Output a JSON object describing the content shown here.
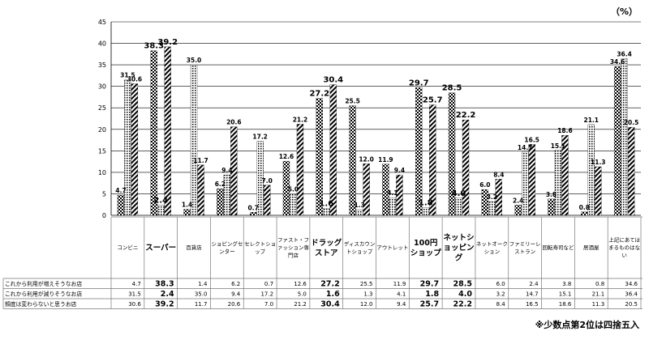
{
  "unit_label": "（%）",
  "footnote": "※少数点第2位は四捨五入",
  "chart_data": {
    "type": "bar",
    "categories": [
      "コンビニ",
      "スーパー",
      "百貨店",
      "ショピングセンター",
      "セレクトショップ",
      "ファスト・ファッション専門店",
      "ドラッグストア",
      "ディスカウントショップ",
      "アウトレット",
      "100円ショップ",
      "ネットショッピング",
      "ネットオークション",
      "ファミリーレストラン",
      "回転寿司など",
      "居酒屋",
      "上記にあてはまるものはない"
    ],
    "bold_categories": [
      1,
      6,
      9,
      10
    ],
    "series": [
      {
        "name": "これから利用が増えそうなお店",
        "values": [
          4.7,
          38.3,
          1.4,
          6.2,
          0.7,
          12.6,
          27.2,
          25.5,
          11.9,
          29.7,
          28.5,
          6.0,
          2.4,
          3.8,
          0.8,
          34.6
        ],
        "pattern": "checker"
      },
      {
        "name": "これから利用が減りそうなお店",
        "values": [
          31.5,
          2.4,
          35.0,
          9.4,
          17.2,
          5.0,
          1.6,
          1.3,
          4.1,
          1.8,
          4.0,
          3.2,
          14.7,
          15.1,
          21.1,
          36.4
        ],
        "pattern": "dots"
      },
      {
        "name": "頻度は変わらないと思うお店",
        "values": [
          30.6,
          39.2,
          11.7,
          20.6,
          7.0,
          21.2,
          30.4,
          12.0,
          9.4,
          25.7,
          22.2,
          8.4,
          16.5,
          18.6,
          11.3,
          20.5
        ],
        "pattern": "diagonal"
      }
    ],
    "table_values": [
      [
        "4.7",
        "38.3",
        "1.4",
        "6.2",
        "0.7",
        "12.6",
        "27.2",
        "25.5",
        "11.9",
        "29.7",
        "28.5",
        "6.0",
        "2.4",
        "3.8",
        "0.8",
        "34.6"
      ],
      [
        "31.5",
        "2.4",
        "35.0",
        "9.4",
        "17.2",
        "5.0",
        "1.6",
        "1.3",
        "4.1",
        "1.8",
        "4.0",
        "3.2",
        "14.7",
        "15.1",
        "21.1",
        "36.4"
      ],
      [
        "30.6",
        "39.2",
        "11.7",
        "20.6",
        "7.0",
        "21.2",
        "30.4",
        "12.0",
        "9.4",
        "25.7",
        "22.2",
        "8.4",
        "16.5",
        "18.6",
        "11.3",
        "20.5"
      ]
    ],
    "y_ticks": [
      "0",
      "5",
      "10",
      "15",
      "20",
      "25",
      "30",
      "35",
      "40",
      "45"
    ],
    "ylim": [
      0,
      45
    ],
    "grid": true,
    "colors": {
      "bars": "#000000",
      "grid": "#000000",
      "table_border": "#777777"
    }
  }
}
